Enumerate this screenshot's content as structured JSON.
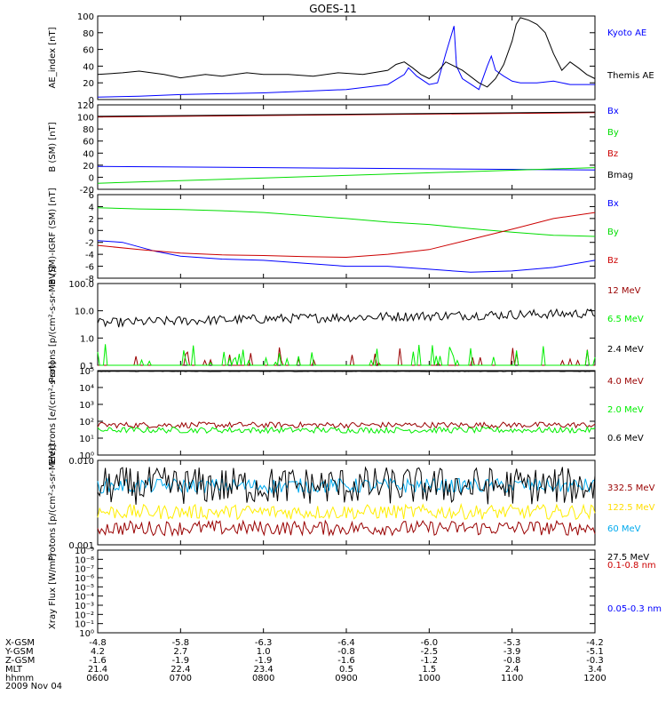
{
  "title": "GOES-11",
  "date_label": "2009 Nov 04",
  "ephemeris": {
    "labels": [
      "X-GSM",
      "Y-GSM",
      "Z-GSM",
      "MLT",
      "hhmm"
    ],
    "columns": [
      {
        "x": "-4.8",
        "y": "4.2",
        "z": "-1.6",
        "mlt": "21.4",
        "hhmm": "0600"
      },
      {
        "x": "-5.8",
        "y": "2.7",
        "z": "-1.9",
        "mlt": "22.4",
        "hhmm": "0700"
      },
      {
        "x": "-6.3",
        "y": "1.0",
        "z": "-1.9",
        "mlt": "23.4",
        "hhmm": "0800"
      },
      {
        "x": "-6.4",
        "y": "-0.8",
        "z": "-1.6",
        "mlt": "0.5",
        "hhmm": "0900"
      },
      {
        "x": "-6.0",
        "y": "-2.5",
        "z": "-1.2",
        "mlt": "1.5",
        "hhmm": "1000"
      },
      {
        "x": "-5.3",
        "y": "-3.9",
        "z": "-0.8",
        "mlt": "2.4",
        "hhmm": "1100"
      },
      {
        "x": "-4.2",
        "y": "-5.1",
        "z": "-0.3",
        "mlt": "3.4",
        "hhmm": "1200"
      }
    ]
  },
  "chart_data": [
    {
      "type": "line",
      "ylabel": "AE_index [nT]",
      "ylim": [
        0,
        100
      ],
      "yticks": [
        "0",
        "20",
        "40",
        "60",
        "80",
        "100"
      ],
      "x_range_hours": [
        6,
        12
      ],
      "series": [
        {
          "name": "Kyoto AE",
          "color": "#0000ff",
          "points": [
            [
              6.0,
              3
            ],
            [
              6.5,
              4
            ],
            [
              7.0,
              6
            ],
            [
              7.5,
              7
            ],
            [
              8.0,
              8
            ],
            [
              8.5,
              10
            ],
            [
              9.0,
              12
            ],
            [
              9.5,
              18
            ],
            [
              9.7,
              30
            ],
            [
              9.75,
              38
            ],
            [
              9.85,
              28
            ],
            [
              10.0,
              18
            ],
            [
              10.1,
              20
            ],
            [
              10.2,
              55
            ],
            [
              10.3,
              88
            ],
            [
              10.33,
              40
            ],
            [
              10.4,
              25
            ],
            [
              10.6,
              12
            ],
            [
              10.7,
              40
            ],
            [
              10.75,
              52
            ],
            [
              10.8,
              35
            ],
            [
              10.9,
              28
            ],
            [
              11.0,
              22
            ],
            [
              11.1,
              20
            ],
            [
              11.3,
              20
            ],
            [
              11.5,
              22
            ],
            [
              11.7,
              18
            ],
            [
              12.0,
              18
            ]
          ]
        },
        {
          "name": "Themis AE",
          "color": "#000000",
          "points": [
            [
              6.0,
              30
            ],
            [
              6.3,
              32
            ],
            [
              6.5,
              34
            ],
            [
              6.8,
              30
            ],
            [
              7.0,
              26
            ],
            [
              7.3,
              30
            ],
            [
              7.5,
              28
            ],
            [
              7.8,
              32
            ],
            [
              8.0,
              30
            ],
            [
              8.3,
              30
            ],
            [
              8.6,
              28
            ],
            [
              8.9,
              32
            ],
            [
              9.2,
              30
            ],
            [
              9.5,
              35
            ],
            [
              9.6,
              42
            ],
            [
              9.7,
              45
            ],
            [
              9.8,
              38
            ],
            [
              9.9,
              30
            ],
            [
              10.0,
              25
            ],
            [
              10.1,
              33
            ],
            [
              10.2,
              45
            ],
            [
              10.4,
              35
            ],
            [
              10.6,
              20
            ],
            [
              10.7,
              15
            ],
            [
              10.8,
              25
            ],
            [
              10.9,
              42
            ],
            [
              11.0,
              70
            ],
            [
              11.05,
              90
            ],
            [
              11.1,
              98
            ],
            [
              11.2,
              95
            ],
            [
              11.3,
              90
            ],
            [
              11.4,
              80
            ],
            [
              11.5,
              55
            ],
            [
              11.6,
              35
            ],
            [
              11.7,
              45
            ],
            [
              11.8,
              38
            ],
            [
              11.9,
              30
            ],
            [
              12.0,
              25
            ]
          ]
        }
      ]
    },
    {
      "type": "line",
      "ylabel": "B (SM) [nT]",
      "ylim": [
        -20,
        120
      ],
      "yticks": [
        "-20",
        "0",
        "20",
        "40",
        "60",
        "80",
        "100",
        "120"
      ],
      "x_range_hours": [
        6,
        12
      ],
      "series": [
        {
          "name": "Bx",
          "color": "#0000ff",
          "points": [
            [
              6,
              18
            ],
            [
              12,
              12
            ]
          ]
        },
        {
          "name": "By",
          "color": "#00dd00",
          "points": [
            [
              6,
              -10
            ],
            [
              12,
              16
            ]
          ]
        },
        {
          "name": "Bz",
          "color": "#cc0000",
          "points": [
            [
              6,
              100
            ],
            [
              12,
              107
            ]
          ]
        },
        {
          "name": "Bmag",
          "color": "#000000",
          "points": [
            [
              6,
              101
            ],
            [
              12,
              108
            ]
          ]
        }
      ]
    },
    {
      "type": "line",
      "ylabel": "B (SM)-IGRF (SM) [nT]",
      "ylim": [
        -8,
        6
      ],
      "yticks": [
        "-8",
        "-6",
        "-4",
        "-2",
        "0",
        "2",
        "4",
        "6"
      ],
      "x_range_hours": [
        6,
        12
      ],
      "series": [
        {
          "name": "Bx",
          "color": "#0000ff",
          "points": [
            [
              6.0,
              -1.7
            ],
            [
              6.3,
              -2.0
            ],
            [
              6.7,
              -3.5
            ],
            [
              7.0,
              -4.3
            ],
            [
              7.5,
              -4.8
            ],
            [
              8.0,
              -5.0
            ],
            [
              8.5,
              -5.5
            ],
            [
              9.0,
              -6.0
            ],
            [
              9.5,
              -6.0
            ],
            [
              10.0,
              -6.5
            ],
            [
              10.5,
              -7.0
            ],
            [
              11.0,
              -6.8
            ],
            [
              11.5,
              -6.2
            ],
            [
              12.0,
              -5.0
            ]
          ]
        },
        {
          "name": "By",
          "color": "#00dd00",
          "points": [
            [
              6.0,
              3.8
            ],
            [
              6.5,
              3.6
            ],
            [
              7.0,
              3.5
            ],
            [
              7.5,
              3.3
            ],
            [
              8.0,
              3.0
            ],
            [
              8.5,
              2.5
            ],
            [
              9.0,
              2.0
            ],
            [
              9.5,
              1.4
            ],
            [
              10.0,
              1.0
            ],
            [
              10.5,
              0.3
            ],
            [
              11.0,
              -0.3
            ],
            [
              11.5,
              -0.8
            ],
            [
              12.0,
              -1.0
            ]
          ]
        },
        {
          "name": "Bz",
          "color": "#cc0000",
          "points": [
            [
              6.0,
              -2.5
            ],
            [
              6.5,
              -3.2
            ],
            [
              7.0,
              -3.8
            ],
            [
              7.5,
              -4.1
            ],
            [
              8.0,
              -4.2
            ],
            [
              8.5,
              -4.4
            ],
            [
              9.0,
              -4.5
            ],
            [
              9.5,
              -4.0
            ],
            [
              10.0,
              -3.2
            ],
            [
              10.5,
              -1.5
            ],
            [
              11.0,
              0.2
            ],
            [
              11.5,
              2.0
            ],
            [
              12.0,
              3.0
            ]
          ]
        }
      ]
    },
    {
      "type": "line",
      "ylabel": "Protons [p/(cm²-s-sr-MeV)]",
      "yscale": "log",
      "ylim": [
        0.1,
        100
      ],
      "yticks": [
        "0.1",
        "1.0",
        "10.0",
        "100.0"
      ],
      "x_range_hours": [
        6,
        12
      ],
      "series": [
        {
          "name": "12 MeV",
          "color": "#990000",
          "base": 0.1,
          "noise": "spiky-floor"
        },
        {
          "name": "6.5 MeV",
          "color": "#00ee00",
          "base": 0.12,
          "noise": "spiky-floor"
        },
        {
          "name": "2.4 MeV",
          "color": "#000000",
          "base_start": 3.5,
          "base_end": 8.0,
          "noise": "jitter"
        }
      ]
    },
    {
      "type": "line",
      "ylabel": "Electrons [e/(cm²-s-sr)]",
      "yscale": "log",
      "ylim": [
        1,
        100000
      ],
      "yticks": [
        "10⁰",
        "10¹",
        "10²",
        "10³",
        "10⁴",
        "10⁵"
      ],
      "x_range_hours": [
        6,
        12
      ],
      "series": [
        {
          "name": "4.0 MeV",
          "color": "#990000",
          "base": 60,
          "noise": "jitter"
        },
        {
          "name": "2.0 MeV",
          "color": "#00ee00",
          "base": 30,
          "noise": "jitter"
        },
        {
          "name": "0.6 MeV",
          "color": "#000000",
          "base": 90000,
          "noise": "flat"
        }
      ]
    },
    {
      "type": "line",
      "ylabel": "Protons [p/(cm²-s-sr-MeV)]",
      "yscale": "log",
      "ylim": [
        0.001,
        0.1
      ],
      "yticks": [
        "0.001",
        "0.010"
      ],
      "x_range_hours": [
        6,
        12
      ],
      "series": [
        {
          "name": "332.5 MeV",
          "color": "#990000",
          "base": 0.0025,
          "noise": "jitter"
        },
        {
          "name": "122.5 MeV",
          "color": "#ffee00",
          "base": 0.006,
          "noise": "jitter"
        },
        {
          "name": "60 MeV",
          "color": "#00aaee",
          "base": 0.025,
          "noise": "jitter"
        },
        {
          "name": "27.5 MeV",
          "color": "#000000",
          "base": 0.025,
          "noise": "heavy"
        }
      ]
    },
    {
      "type": "line",
      "ylabel": "Xray Flux [W/m²]",
      "yscale": "log",
      "ylim": [
        1e-09,
        1
      ],
      "yticks": [
        "10⁰",
        "10⁻¹",
        "10⁻²",
        "10⁻³",
        "10⁻⁴",
        "10⁻⁵",
        "10⁻⁶",
        "10⁻⁷",
        "10⁻⁸",
        "10⁻⁹"
      ],
      "x_range_hours": [
        6,
        12
      ],
      "series": [
        {
          "name": "0.1-0.8 nm",
          "color": "#cc0000",
          "points": []
        },
        {
          "name": "0.05-0.3 nm",
          "color": "#0000ff",
          "points": []
        }
      ]
    }
  ]
}
